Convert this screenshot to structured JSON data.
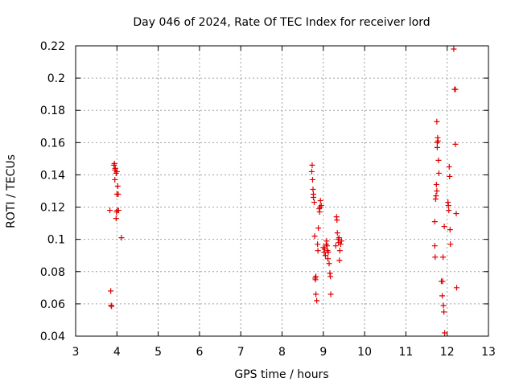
{
  "chart_data": {
    "type": "scatter",
    "title": "Day 046 of 2024, Rate Of TEC Index for receiver lord",
    "xlabel": "GPS time / hours",
    "ylabel": "ROTI / TECUs",
    "xlim": [
      3,
      13
    ],
    "ylim": [
      0.04,
      0.22
    ],
    "x_ticks": [
      3,
      4,
      5,
      6,
      7,
      8,
      9,
      10,
      11,
      12,
      13
    ],
    "x_tick_labels": [
      "3",
      "4",
      "5",
      "6",
      "7",
      "8",
      "9",
      "10",
      "11",
      "12",
      "13"
    ],
    "y_ticks": [
      0.04,
      0.06,
      0.08,
      0.1,
      0.12,
      0.14,
      0.16,
      0.18,
      0.2,
      0.22
    ],
    "y_tick_labels": [
      "0.04",
      "0.06",
      "0.08",
      "0.1",
      "0.12",
      "0.14",
      "0.16",
      "0.18",
      "0.2",
      "0.22"
    ],
    "grid": true,
    "marker": "+",
    "marker_color": "#e00000",
    "series": [
      {
        "name": "ROTI",
        "points": [
          [
            3.83,
            0.118
          ],
          [
            3.85,
            0.068
          ],
          [
            3.86,
            0.059
          ],
          [
            3.87,
            0.0585
          ],
          [
            3.93,
            0.146
          ],
          [
            3.94,
            0.147
          ],
          [
            3.95,
            0.143
          ],
          [
            3.96,
            0.144
          ],
          [
            3.95,
            0.137
          ],
          [
            3.98,
            0.141
          ],
          [
            4.0,
            0.142
          ],
          [
            4.0,
            0.128
          ],
          [
            4.01,
            0.118
          ],
          [
            4.02,
            0.133
          ],
          [
            4.03,
            0.128
          ],
          [
            3.99,
            0.117
          ],
          [
            3.98,
            0.113
          ],
          [
            4.04,
            0.118
          ],
          [
            4.11,
            0.101
          ],
          [
            8.73,
            0.146
          ],
          [
            8.72,
            0.142
          ],
          [
            8.74,
            0.137
          ],
          [
            8.75,
            0.131
          ],
          [
            8.76,
            0.128
          ],
          [
            8.76,
            0.126
          ],
          [
            8.78,
            0.123
          ],
          [
            8.79,
            0.102
          ],
          [
            8.8,
            0.076
          ],
          [
            8.81,
            0.075
          ],
          [
            8.82,
            0.077
          ],
          [
            8.82,
            0.066
          ],
          [
            8.84,
            0.062
          ],
          [
            8.86,
            0.097
          ],
          [
            8.87,
            0.093
          ],
          [
            8.88,
            0.107
          ],
          [
            8.9,
            0.119
          ],
          [
            8.91,
            0.117
          ],
          [
            8.92,
            0.12
          ],
          [
            8.93,
            0.124
          ],
          [
            8.95,
            0.121
          ],
          [
            9.0,
            0.095
          ],
          [
            9.02,
            0.092
          ],
          [
            9.03,
            0.094
          ],
          [
            9.05,
            0.09
          ],
          [
            9.07,
            0.097
          ],
          [
            9.08,
            0.099
          ],
          [
            9.09,
            0.096
          ],
          [
            9.1,
            0.093
          ],
          [
            9.11,
            0.088
          ],
          [
            9.12,
            0.092
          ],
          [
            9.14,
            0.085
          ],
          [
            9.16,
            0.079
          ],
          [
            9.17,
            0.077
          ],
          [
            9.18,
            0.066
          ],
          [
            9.3,
            0.096
          ],
          [
            9.32,
            0.114
          ],
          [
            9.33,
            0.112
          ],
          [
            9.34,
            0.104
          ],
          [
            9.36,
            0.1
          ],
          [
            9.37,
            0.098
          ],
          [
            9.38,
            0.101
          ],
          [
            9.39,
            0.087
          ],
          [
            9.4,
            0.093
          ],
          [
            9.42,
            0.097
          ],
          [
            9.44,
            0.099
          ],
          [
            11.7,
            0.111
          ],
          [
            11.7,
            0.096
          ],
          [
            11.71,
            0.089
          ],
          [
            11.72,
            0.125
          ],
          [
            11.73,
            0.127
          ],
          [
            11.74,
            0.134
          ],
          [
            11.75,
            0.13
          ],
          [
            11.75,
            0.173
          ],
          [
            11.76,
            0.157
          ],
          [
            11.76,
            0.16
          ],
          [
            11.77,
            0.163
          ],
          [
            11.78,
            0.161
          ],
          [
            11.79,
            0.149
          ],
          [
            11.8,
            0.141
          ],
          [
            11.86,
            0.074
          ],
          [
            11.88,
            0.065
          ],
          [
            11.89,
            0.074
          ],
          [
            11.9,
            0.089
          ],
          [
            11.91,
            0.059
          ],
          [
            11.92,
            0.055
          ],
          [
            11.93,
            0.108
          ],
          [
            11.94,
            0.042
          ],
          [
            12.02,
            0.123
          ],
          [
            12.03,
            0.121
          ],
          [
            12.04,
            0.118
          ],
          [
            12.05,
            0.145
          ],
          [
            12.06,
            0.139
          ],
          [
            12.07,
            0.106
          ],
          [
            12.08,
            0.097
          ],
          [
            12.16,
            0.218
          ],
          [
            12.18,
            0.193
          ],
          [
            12.2,
            0.193
          ],
          [
            12.2,
            0.159
          ],
          [
            12.22,
            0.116
          ],
          [
            12.23,
            0.07
          ]
        ]
      }
    ]
  }
}
